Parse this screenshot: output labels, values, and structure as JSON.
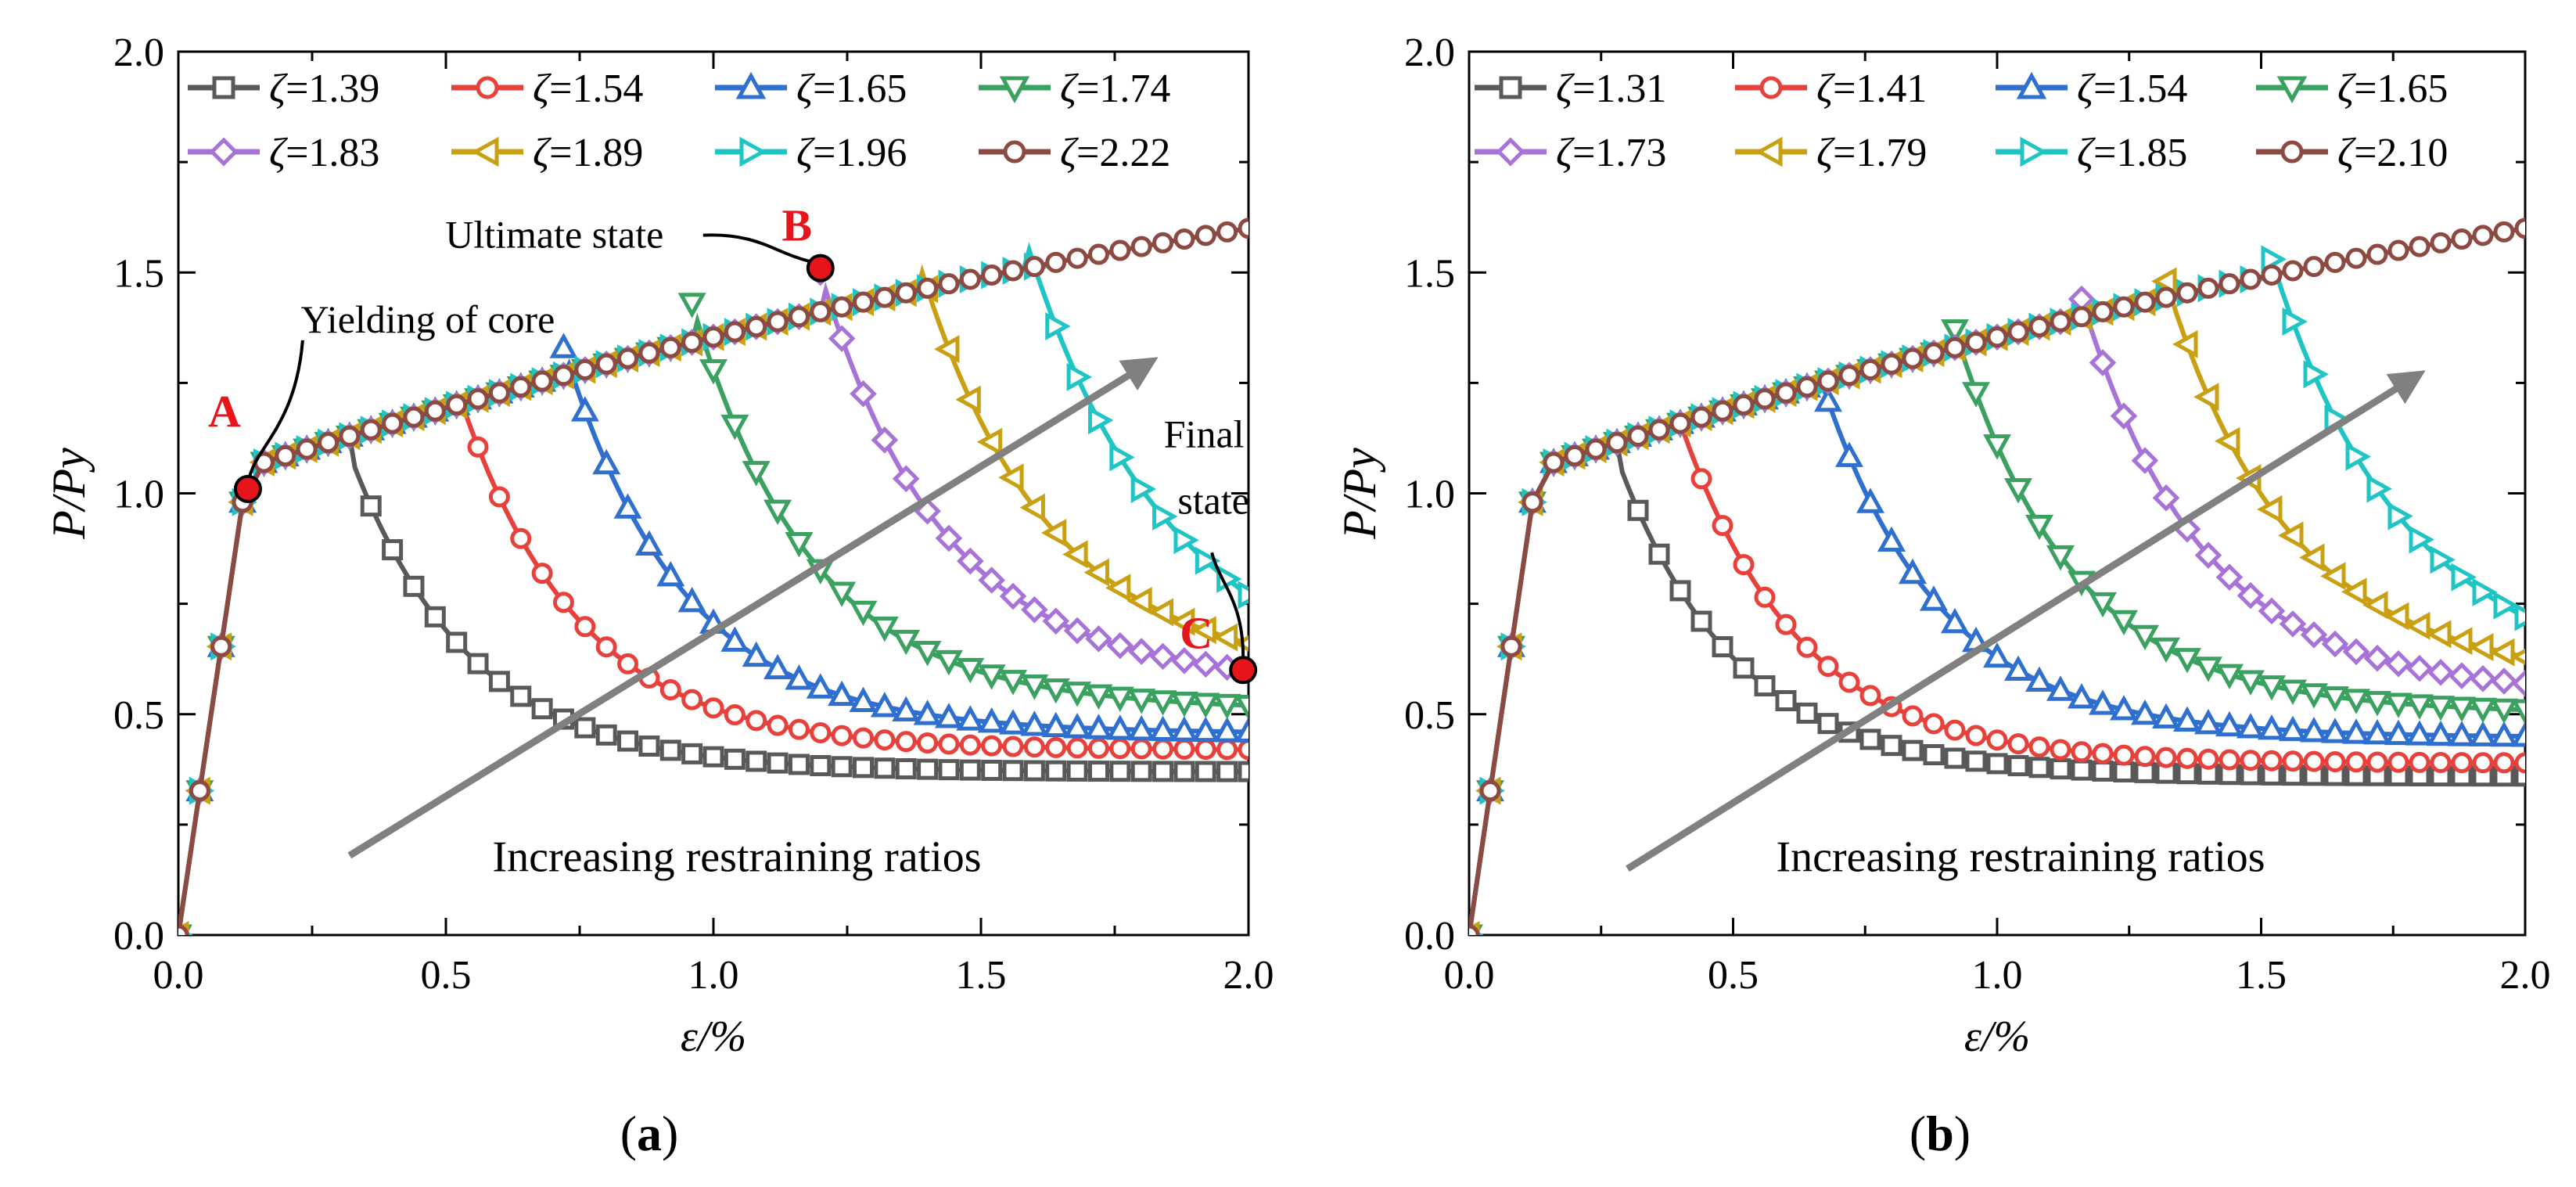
{
  "chart_data": [
    {
      "panel_label": "(a)",
      "type": "line",
      "xlabel": "ε/%",
      "ylabel": "P/Py",
      "xlim": [
        0,
        2.0
      ],
      "ylim": [
        0,
        2.0
      ],
      "xticks": [
        0.0,
        0.5,
        1.0,
        1.5,
        2.0
      ],
      "yticks": [
        0.0,
        0.5,
        1.0,
        1.5,
        2.0
      ],
      "tick_labels_x": [
        "0.0",
        "0.5",
        "1.0",
        "1.5",
        "2.0"
      ],
      "tick_labels_y": [
        "0.0",
        "0.5",
        "1.0",
        "1.5",
        "2.0"
      ],
      "legend_symbol": "ζ",
      "series": [
        {
          "name": "ζ=1.39",
          "zeta": "1.39",
          "marker": "square",
          "color": "#595959",
          "peak_strain": 0.32,
          "peak_load": 1.09,
          "final_load": 0.37
        },
        {
          "name": "ζ=1.54",
          "zeta": "1.54",
          "marker": "circle",
          "color": "#e8413c",
          "peak_strain": 0.52,
          "peak_load": 1.24,
          "final_load": 0.42
        },
        {
          "name": "ζ=1.65",
          "zeta": "1.65",
          "marker": "triangle-up",
          "color": "#2f6fd0",
          "peak_strain": 0.72,
          "peak_load": 1.33,
          "final_load": 0.46
        },
        {
          "name": "ζ=1.74",
          "zeta": "1.74",
          "marker": "triangle-down",
          "color": "#3aa160",
          "peak_strain": 0.96,
          "peak_load": 1.43,
          "final_load": 0.52
        },
        {
          "name": "ζ=1.83",
          "zeta": "1.83",
          "marker": "diamond",
          "color": "#a873d8",
          "peak_strain": 1.2,
          "peak_load": 1.5,
          "final_load": 0.6
        },
        {
          "name": "ζ=1.89",
          "zeta": "1.89",
          "marker": "triangle-left",
          "color": "#c9a012",
          "peak_strain": 1.38,
          "peak_load": 1.54,
          "final_load": 0.66
        },
        {
          "name": "ζ=1.96",
          "zeta": "1.96",
          "marker": "triangle-right",
          "color": "#1fc4c4",
          "peak_strain": 1.58,
          "peak_load": 1.59,
          "final_load": 0.77
        },
        {
          "name": "ζ=2.22",
          "zeta": "2.22",
          "marker": "circle",
          "color": "#8c4a42",
          "peak_strain": 2.0,
          "peak_load": 1.7,
          "final_load": 1.7
        }
      ],
      "points": [
        {
          "label": "A",
          "x": 0.13,
          "y": 1.01,
          "note": "Yielding of core"
        },
        {
          "label": "B",
          "x": 1.2,
          "y": 1.51,
          "note": "Ultimate state"
        },
        {
          "label": "C",
          "x": 1.99,
          "y": 0.6,
          "note_lines": [
            "Final",
            "state"
          ]
        }
      ],
      "arrow_text": "Increasing restraining ratios",
      "arrow": {
        "from": [
          0.32,
          0.18
        ],
        "to": [
          1.82,
          1.3
        ]
      }
    },
    {
      "panel_label": "(b)",
      "type": "line",
      "xlabel": "ε/%",
      "ylabel": "P/Py",
      "xlim": [
        0,
        2.0
      ],
      "ylim": [
        0,
        2.0
      ],
      "xticks": [
        0.0,
        0.5,
        1.0,
        1.5,
        2.0
      ],
      "yticks": [
        0.0,
        0.5,
        1.0,
        1.5,
        2.0
      ],
      "tick_labels_x": [
        "0.0",
        "0.5",
        "1.0",
        "1.5",
        "2.0"
      ],
      "tick_labels_y": [
        "0.0",
        "0.5",
        "1.0",
        "1.5",
        "2.0"
      ],
      "legend_symbol": "ζ",
      "series": [
        {
          "name": "ζ=1.31",
          "zeta": "1.31",
          "marker": "square",
          "color": "#595959",
          "peak_strain": 0.28,
          "peak_load": 1.08,
          "final_load": 0.36
        },
        {
          "name": "ζ=1.41",
          "zeta": "1.41",
          "marker": "circle",
          "color": "#e8413c",
          "peak_strain": 0.4,
          "peak_load": 1.16,
          "final_load": 0.39
        },
        {
          "name": "ζ=1.54",
          "zeta": "1.54",
          "marker": "triangle-up",
          "color": "#2f6fd0",
          "peak_strain": 0.66,
          "peak_load": 1.28,
          "final_load": 0.45
        },
        {
          "name": "ζ=1.65",
          "zeta": "1.65",
          "marker": "triangle-down",
          "color": "#3aa160",
          "peak_strain": 0.92,
          "peak_load": 1.37,
          "final_load": 0.51
        },
        {
          "name": "ζ=1.73",
          "zeta": "1.73",
          "marker": "diamond",
          "color": "#a873d8",
          "peak_strain": 1.16,
          "peak_load": 1.44,
          "final_load": 0.57
        },
        {
          "name": "ζ=1.79",
          "zeta": "1.79",
          "marker": "triangle-left",
          "color": "#c9a012",
          "peak_strain": 1.32,
          "peak_load": 1.48,
          "final_load": 0.63
        },
        {
          "name": "ζ=1.85",
          "zeta": "1.85",
          "marker": "triangle-right",
          "color": "#1fc4c4",
          "peak_strain": 1.52,
          "peak_load": 1.53,
          "final_load": 0.72
        },
        {
          "name": "ζ=2.10",
          "zeta": "2.10",
          "marker": "circle",
          "color": "#8c4a42",
          "peak_strain": 2.0,
          "peak_load": 1.65,
          "final_load": 1.65
        }
      ],
      "arrow_text": "Increasing restraining ratios",
      "arrow": {
        "from": [
          0.3,
          0.15
        ],
        "to": [
          1.8,
          1.27
        ]
      }
    }
  ]
}
